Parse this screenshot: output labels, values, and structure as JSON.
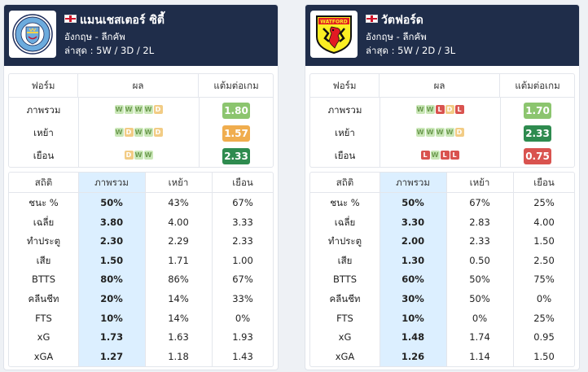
{
  "teams": [
    {
      "id": "left",
      "name": "แมนเชสเตอร์ ซิตี้",
      "logo_icon": "manchester-city-crest-icon",
      "country": "อังกฤษ - ลีกคัพ",
      "record": "ล่าสุด : 5W / 3D / 2L",
      "form_table": {
        "headers": [
          "ฟอร์ม",
          "ผล",
          "แต้มต่อเกม"
        ],
        "rows": [
          {
            "label": "ภาพรวม",
            "results": [
              "W",
              "W",
              "W",
              "W",
              "D"
            ],
            "ppg": "1.80",
            "ppg_color": "#8cc56f"
          },
          {
            "label": "เหย้า",
            "results": [
              "W",
              "D",
              "W",
              "W",
              "D"
            ],
            "ppg": "1.57",
            "ppg_color": "#f0ad4e"
          },
          {
            "label": "เยือน",
            "results": [
              "D",
              "W",
              "W"
            ],
            "ppg": "2.33",
            "ppg_color": "#2e8b4f"
          }
        ]
      },
      "stats_table": {
        "headers": [
          "สถิติ",
          "ภาพรวม",
          "เหย้า",
          "เยือน"
        ],
        "rows": [
          [
            "ชนะ %",
            "50%",
            "43%",
            "67%"
          ],
          [
            "เฉลี่ย",
            "3.80",
            "4.00",
            "3.33"
          ],
          [
            "ทำประตู",
            "2.30",
            "2.29",
            "2.33"
          ],
          [
            "เสีย",
            "1.50",
            "1.71",
            "1.00"
          ],
          [
            "BTTS",
            "80%",
            "86%",
            "67%"
          ],
          [
            "คลีนชีท",
            "20%",
            "14%",
            "33%"
          ],
          [
            "FTS",
            "10%",
            "14%",
            "0%"
          ],
          [
            "xG",
            "1.73",
            "1.63",
            "1.93"
          ],
          [
            "xGA",
            "1.27",
            "1.18",
            "1.43"
          ]
        ]
      }
    },
    {
      "id": "right",
      "name": "วัตฟอร์ด",
      "logo_icon": "watford-crest-icon",
      "logo_text": "WATFORD",
      "country": "อังกฤษ - ลีกคัพ",
      "record": "ล่าสุด : 5W / 2D / 3L",
      "form_table": {
        "headers": [
          "ฟอร์ม",
          "ผล",
          "แต้มต่อเกม"
        ],
        "rows": [
          {
            "label": "ภาพรวม",
            "results": [
              "W",
              "W",
              "L",
              "D",
              "L"
            ],
            "ppg": "1.70",
            "ppg_color": "#8cc56f"
          },
          {
            "label": "เหย้า",
            "results": [
              "W",
              "W",
              "W",
              "W",
              "D"
            ],
            "ppg": "2.33",
            "ppg_color": "#2e8b4f"
          },
          {
            "label": "เยือน",
            "results": [
              "L",
              "W",
              "L",
              "L"
            ],
            "ppg": "0.75",
            "ppg_color": "#d9534f"
          }
        ]
      },
      "stats_table": {
        "headers": [
          "สถิติ",
          "ภาพรวม",
          "เหย้า",
          "เยือน"
        ],
        "rows": [
          [
            "ชนะ %",
            "50%",
            "67%",
            "25%"
          ],
          [
            "เฉลี่ย",
            "3.30",
            "2.83",
            "4.00"
          ],
          [
            "ทำประตู",
            "2.00",
            "2.33",
            "1.50"
          ],
          [
            "เสีย",
            "1.30",
            "0.50",
            "2.50"
          ],
          [
            "BTTS",
            "60%",
            "50%",
            "75%"
          ],
          [
            "คลีนชีท",
            "30%",
            "50%",
            "0%"
          ],
          [
            "FTS",
            "10%",
            "0%",
            "25%"
          ],
          [
            "xG",
            "1.48",
            "1.74",
            "0.95"
          ],
          [
            "xGA",
            "1.26",
            "1.14",
            "1.50"
          ]
        ]
      }
    }
  ]
}
